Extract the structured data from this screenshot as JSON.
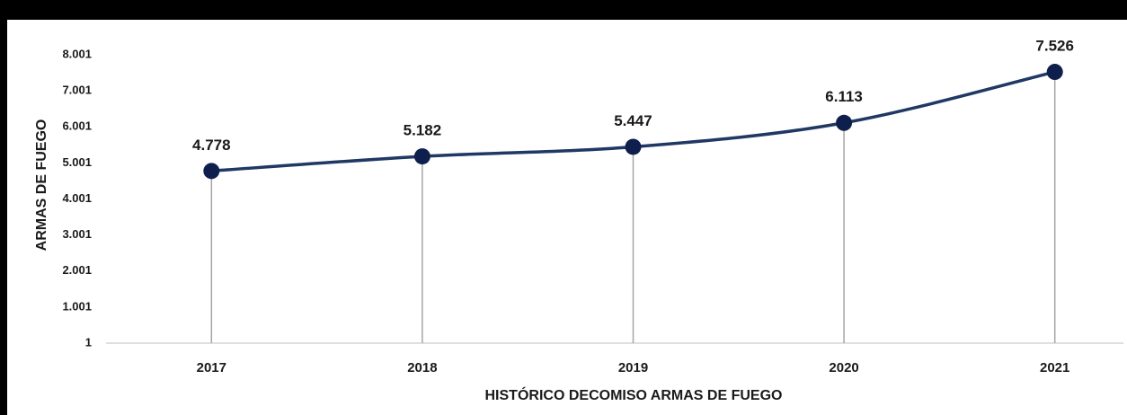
{
  "chart_data": {
    "type": "line",
    "x_label": "HISTÓRICO DECOMISO ARMAS DE FUEGO",
    "y_label": "ARMAS DE FUEGO",
    "categories": [
      "2017",
      "2018",
      "2019",
      "2020",
      "2021"
    ],
    "values": [
      4778,
      5182,
      5447,
      6113,
      7526
    ],
    "value_labels": [
      "4.778",
      "5.182",
      "5.447",
      "6.113",
      "7.526"
    ],
    "color": "#1f3864",
    "marker_color": "#0f1f4d",
    "ylim": [
      1,
      8001
    ],
    "yticks": [
      1,
      {
        "value": 1001,
        "label": "1.001"
      },
      {
        "value": 2001,
        "label": "2.001"
      },
      {
        "value": 3001,
        "label": "3.001"
      },
      {
        "value": 4001,
        "label": "4.001"
      },
      {
        "value": 5001,
        "label": "5.001"
      },
      {
        "value": 6001,
        "label": "6.001"
      },
      {
        "value": 7001,
        "label": "7.001"
      },
      {
        "value": 8001,
        "label": "8.001"
      }
    ],
    "grid": false,
    "smooth": true,
    "drop_lines": true
  }
}
